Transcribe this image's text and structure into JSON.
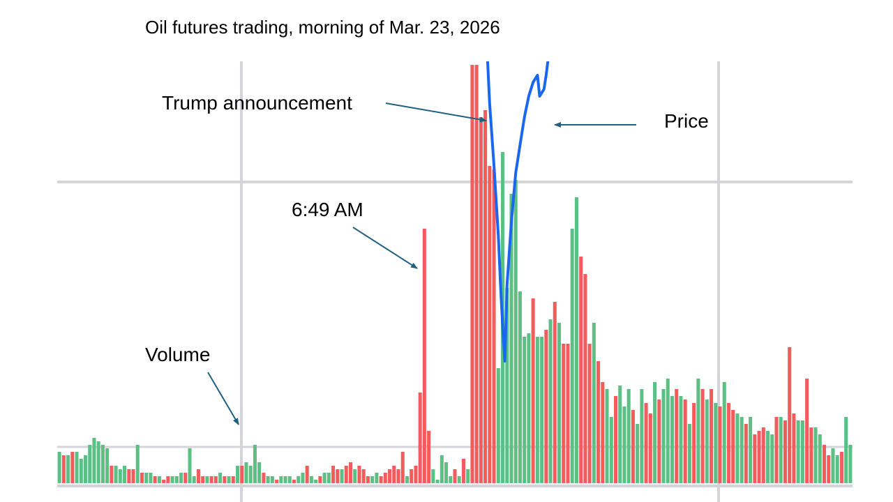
{
  "chart_data": {
    "type": "bar",
    "title": "Oil futures trading, morning of Mar. 23, 2026",
    "xlabel": "",
    "ylabel": "",
    "grid": true,
    "colors": {
      "up": "#5cbf84",
      "down": "#f25c5c",
      "price": "#1a66ee",
      "grid": "#d4d4d8",
      "arrow": "#1f5f80"
    },
    "volume_series": {
      "name": "Volume",
      "bars": [
        [
          "g",
          45
        ],
        [
          "r",
          40
        ],
        [
          "g",
          40
        ],
        [
          "r",
          45
        ],
        [
          "g",
          45
        ],
        [
          "g",
          35
        ],
        [
          "g",
          40
        ],
        [
          "g",
          55
        ],
        [
          "g",
          65
        ],
        [
          "g",
          60
        ],
        [
          "g",
          55
        ],
        [
          "g",
          50
        ],
        [
          "r",
          25
        ],
        [
          "g",
          25
        ],
        [
          "g",
          20
        ],
        [
          "g",
          25
        ],
        [
          "r",
          20
        ],
        [
          "r",
          20
        ],
        [
          "g",
          55
        ],
        [
          "r",
          15
        ],
        [
          "g",
          15
        ],
        [
          "g",
          15
        ],
        [
          "r",
          10
        ],
        [
          "g",
          10
        ],
        [
          "r",
          5
        ],
        [
          "r",
          10
        ],
        [
          "g",
          10
        ],
        [
          "g",
          10
        ],
        [
          "g",
          15
        ],
        [
          "r",
          15
        ],
        [
          "g",
          50
        ],
        [
          "g",
          10
        ],
        [
          "r",
          20
        ],
        [
          "r",
          10
        ],
        [
          "g",
          10
        ],
        [
          "r",
          10
        ],
        [
          "r",
          10
        ],
        [
          "g",
          15
        ],
        [
          "r",
          10
        ],
        [
          "g",
          10
        ],
        [
          "r",
          10
        ],
        [
          "g",
          25
        ],
        [
          "r",
          25
        ],
        [
          "g",
          30
        ],
        [
          "g",
          25
        ],
        [
          "g",
          55
        ],
        [
          "g",
          30
        ],
        [
          "r",
          15
        ],
        [
          "g",
          10
        ],
        [
          "g",
          10
        ],
        [
          "r",
          5
        ],
        [
          "g",
          10
        ],
        [
          "g",
          10
        ],
        [
          "g",
          10
        ],
        [
          "r",
          5
        ],
        [
          "g",
          10
        ],
        [
          "g",
          15
        ],
        [
          "r",
          25
        ],
        [
          "g",
          10
        ],
        [
          "g",
          5
        ],
        [
          "r",
          10
        ],
        [
          "g",
          15
        ],
        [
          "g",
          15
        ],
        [
          "r",
          25
        ],
        [
          "r",
          20
        ],
        [
          "g",
          20
        ],
        [
          "r",
          25
        ],
        [
          "r",
          30
        ],
        [
          "g",
          20
        ],
        [
          "r",
          25
        ],
        [
          "r",
          20
        ],
        [
          "r",
          10
        ],
        [
          "g",
          10
        ],
        [
          "g",
          15
        ],
        [
          "r",
          10
        ],
        [
          "r",
          15
        ],
        [
          "r",
          20
        ],
        [
          "r",
          25
        ],
        [
          "r",
          20
        ],
        [
          "r",
          45
        ],
        [
          "g",
          10
        ],
        [
          "r",
          20
        ],
        [
          "r",
          25
        ],
        [
          "r",
          130
        ],
        [
          "r",
          365
        ],
        [
          "r",
          75
        ],
        [
          "g",
          20
        ],
        [
          "g",
          5
        ],
        [
          "g",
          40
        ],
        [
          "g",
          30
        ],
        [
          "g",
          10
        ],
        [
          "r",
          20
        ],
        [
          "g",
          10
        ],
        [
          "r",
          35
        ],
        [
          "g",
          20
        ],
        [
          "r",
          600
        ],
        [
          "r",
          600
        ],
        [
          "r",
          525
        ],
        [
          "r",
          535
        ],
        [
          "r",
          455
        ],
        [
          "r",
          450
        ],
        [
          "g",
          165
        ],
        [
          "g",
          475
        ],
        [
          "g",
          280
        ],
        [
          "g",
          415
        ],
        [
          "g",
          435
        ],
        [
          "g",
          275
        ],
        [
          "g",
          210
        ],
        [
          "g",
          215
        ],
        [
          "r",
          265
        ],
        [
          "g",
          210
        ],
        [
          "g",
          210
        ],
        [
          "r",
          220
        ],
        [
          "g",
          235
        ],
        [
          "r",
          260
        ],
        [
          "g",
          230
        ],
        [
          "r",
          200
        ],
        [
          "r",
          200
        ],
        [
          "g",
          365
        ],
        [
          "g",
          410
        ],
        [
          "r",
          325
        ],
        [
          "r",
          300
        ],
        [
          "r",
          200
        ],
        [
          "g",
          230
        ],
        [
          "r",
          175
        ],
        [
          "r",
          145
        ],
        [
          "g",
          135
        ],
        [
          "g",
          95
        ],
        [
          "r",
          125
        ],
        [
          "g",
          140
        ],
        [
          "g",
          110
        ],
        [
          "g",
          135
        ],
        [
          "r",
          105
        ],
        [
          "g",
          85
        ],
        [
          "g",
          135
        ],
        [
          "r",
          115
        ],
        [
          "r",
          100
        ],
        [
          "g",
          145
        ],
        [
          "r",
          120
        ],
        [
          "g",
          135
        ],
        [
          "g",
          150
        ],
        [
          "g",
          125
        ],
        [
          "r",
          135
        ],
        [
          "g",
          125
        ],
        [
          "r",
          120
        ],
        [
          "g",
          85
        ],
        [
          "r",
          115
        ],
        [
          "g",
          150
        ],
        [
          "r",
          135
        ],
        [
          "g",
          120
        ],
        [
          "r",
          135
        ],
        [
          "g",
          115
        ],
        [
          "r",
          110
        ],
        [
          "g",
          145
        ],
        [
          "r",
          115
        ],
        [
          "r",
          105
        ],
        [
          "g",
          100
        ],
        [
          "g",
          95
        ],
        [
          "r",
          85
        ],
        [
          "g",
          95
        ],
        [
          "r",
          70
        ],
        [
          "r",
          75
        ],
        [
          "r",
          80
        ],
        [
          "g",
          75
        ],
        [
          "g",
          70
        ],
        [
          "r",
          95
        ],
        [
          "g",
          95
        ],
        [
          "r",
          90
        ],
        [
          "r",
          195
        ],
        [
          "r",
          100
        ],
        [
          "g",
          90
        ],
        [
          "g",
          90
        ],
        [
          "r",
          150
        ],
        [
          "r",
          80
        ],
        [
          "g",
          80
        ],
        [
          "g",
          70
        ],
        [
          "r",
          55
        ],
        [
          "r",
          40
        ],
        [
          "g",
          50
        ],
        [
          "g",
          40
        ],
        [
          "r",
          45
        ],
        [
          "g",
          95
        ],
        [
          "g",
          55
        ]
      ]
    },
    "price_series": {
      "name": "Price",
      "points": [
        [
          98.5,
          -5
        ],
        [
          99,
          60
        ],
        [
          100,
          150
        ],
        [
          101,
          250
        ],
        [
          101.5,
          320
        ],
        [
          102,
          380
        ],
        [
          102.5,
          430
        ],
        [
          103,
          320
        ],
        [
          104,
          230
        ],
        [
          105,
          160
        ],
        [
          106,
          120
        ],
        [
          107,
          80
        ],
        [
          108,
          50
        ],
        [
          109,
          30
        ],
        [
          110,
          20
        ],
        [
          110.5,
          50
        ],
        [
          111,
          45
        ],
        [
          111.5,
          40
        ],
        [
          112,
          20
        ],
        [
          112.5,
          -5
        ]
      ]
    },
    "annotations": [
      {
        "text": "Trump announcement",
        "target": "price-spike-start"
      },
      {
        "text": "Price",
        "target": "price-line"
      },
      {
        "text": "6:49 AM",
        "target": "bar-85"
      },
      {
        "text": "Volume",
        "target": "volume-bars"
      }
    ]
  }
}
